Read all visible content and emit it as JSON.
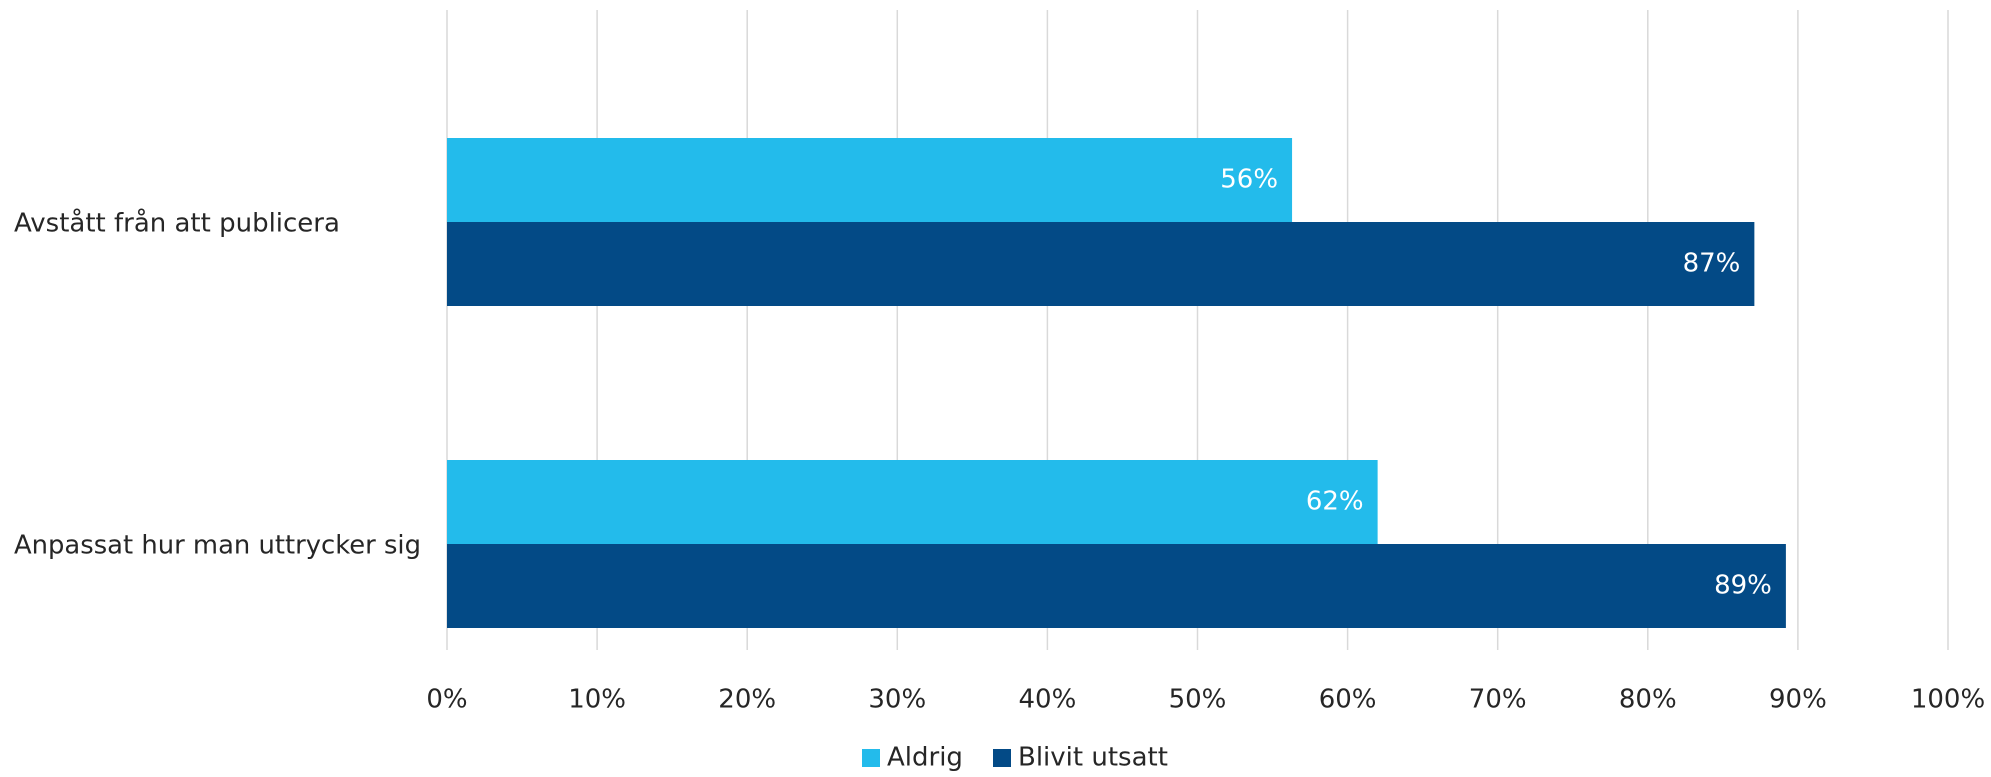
{
  "chart_data": {
    "type": "bar",
    "orientation": "horizontal",
    "title": "",
    "xlabel": "",
    "ylabel": "",
    "xlim": [
      0,
      100
    ],
    "value_format": "percent",
    "categories": [
      "Avstått från att publicera",
      "Anpassat hur man uttrycker sig"
    ],
    "x_ticks": [
      "0%",
      "10%",
      "20%",
      "30%",
      "40%",
      "50%",
      "60%",
      "70%",
      "80%",
      "90%",
      "100%"
    ],
    "series": [
      {
        "name": "Aldrig",
        "color": "#23bbeb",
        "values": [
          56.3,
          62.0
        ],
        "labels": [
          "56%",
          "62%"
        ]
      },
      {
        "name": "Blivit utsatt",
        "color": "#034a86",
        "values": [
          87.1,
          89.2
        ],
        "labels": [
          "87%",
          "89%"
        ]
      }
    ],
    "grid": true,
    "legend_position": "bottom"
  }
}
